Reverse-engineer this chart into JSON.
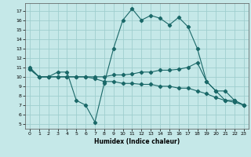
{
  "xlabel": "Humidex (Indice chaleur)",
  "bg_color": "#c5e8e8",
  "grid_color": "#9fcece",
  "line_color": "#1a6868",
  "xlim": [
    -0.5,
    23.5
  ],
  "ylim": [
    4.5,
    17.8
  ],
  "xticks": [
    0,
    1,
    2,
    3,
    4,
    5,
    6,
    7,
    8,
    9,
    10,
    11,
    12,
    13,
    14,
    15,
    16,
    17,
    18,
    19,
    20,
    21,
    22,
    23
  ],
  "yticks": [
    5,
    6,
    7,
    8,
    9,
    10,
    11,
    12,
    13,
    14,
    15,
    16,
    17
  ],
  "line1_x": [
    0,
    1,
    2,
    3,
    4,
    5,
    6,
    7,
    8,
    9,
    10,
    11,
    12,
    13,
    14,
    15,
    16,
    17,
    18,
    19,
    20,
    21,
    22,
    23
  ],
  "line1_y": [
    11.0,
    10.0,
    10.0,
    10.5,
    10.5,
    7.5,
    7.0,
    5.2,
    9.3,
    13.0,
    16.0,
    17.2,
    16.0,
    16.5,
    16.2,
    15.5,
    16.3,
    15.3,
    13.0,
    9.5,
    8.5,
    7.5,
    7.5,
    7.0
  ],
  "line2_x": [
    0,
    1,
    2,
    3,
    4,
    5,
    6,
    7,
    8,
    9,
    10,
    11,
    12,
    13,
    14,
    15,
    16,
    17,
    18,
    19,
    20,
    21,
    22,
    23
  ],
  "line2_y": [
    10.8,
    10.0,
    10.0,
    10.0,
    10.0,
    10.0,
    10.0,
    10.0,
    10.0,
    10.2,
    10.2,
    10.3,
    10.5,
    10.5,
    10.7,
    10.7,
    10.8,
    11.0,
    11.5,
    9.5,
    8.5,
    8.5,
    7.5,
    7.0
  ],
  "line3_x": [
    0,
    1,
    2,
    3,
    4,
    5,
    6,
    7,
    8,
    9,
    10,
    11,
    12,
    13,
    14,
    15,
    16,
    17,
    18,
    19,
    20,
    21,
    22,
    23
  ],
  "line3_y": [
    10.8,
    10.0,
    10.0,
    10.0,
    10.0,
    10.0,
    10.0,
    9.8,
    9.5,
    9.5,
    9.3,
    9.3,
    9.2,
    9.2,
    9.0,
    9.0,
    8.8,
    8.8,
    8.5,
    8.2,
    7.8,
    7.5,
    7.3,
    7.0
  ]
}
